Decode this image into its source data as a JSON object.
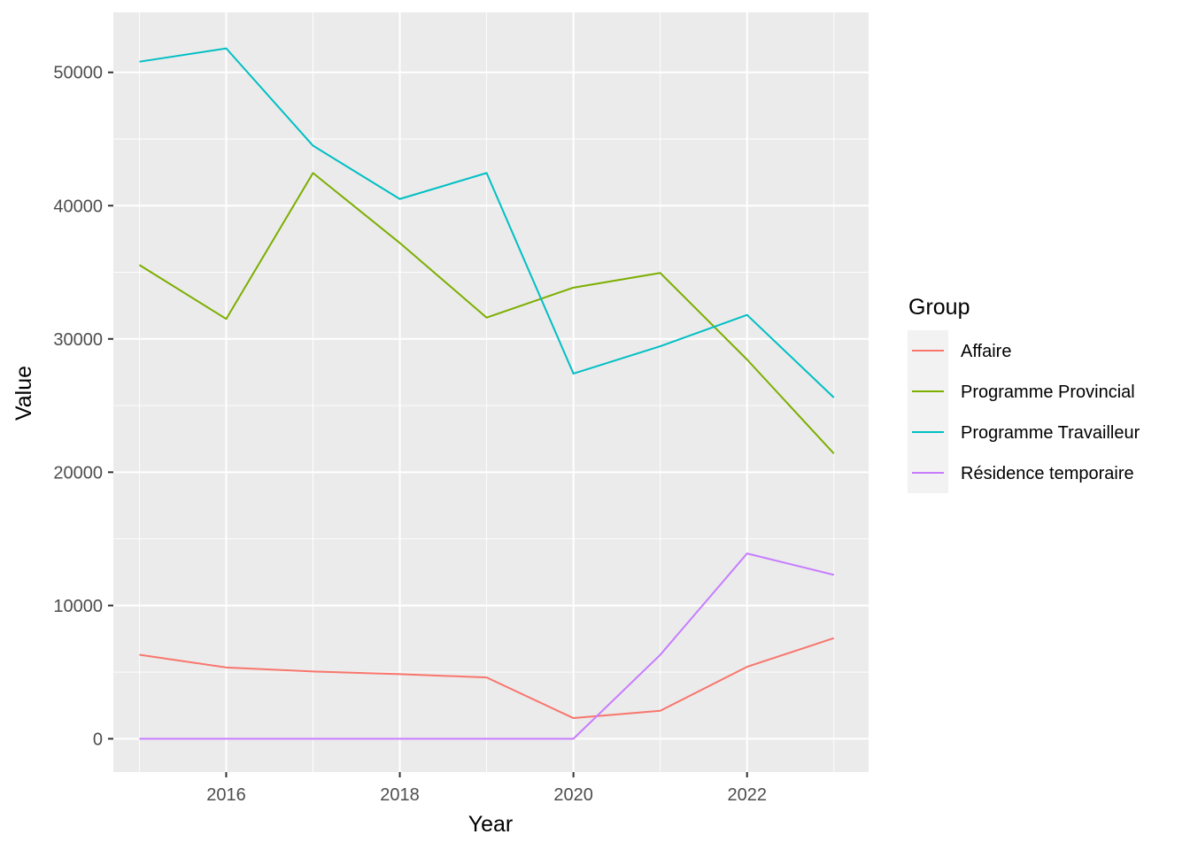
{
  "chart_data": {
    "type": "line",
    "xlabel": "Year",
    "ylabel": "Value",
    "x": [
      2015,
      2016,
      2017,
      2018,
      2019,
      2020,
      2021,
      2022,
      2023
    ],
    "xlim": [
      2014.7,
      2023.4
    ],
    "ylim": [
      -2500,
      54500
    ],
    "x_ticks": [
      2016,
      2018,
      2020,
      2022
    ],
    "y_ticks": [
      0,
      10000,
      20000,
      30000,
      40000,
      50000
    ],
    "x_tick_labels": [
      "2016",
      "2018",
      "2020",
      "2022"
    ],
    "y_tick_labels": [
      "0",
      "10000",
      "20000",
      "30000",
      "40000",
      "50000"
    ],
    "grid": true,
    "background": "#ebebeb",
    "legend": {
      "title": "Group",
      "placement": "right"
    },
    "series": [
      {
        "name": "Affaire",
        "color": "#f8766d",
        "values": [
          6300,
          5350,
          5050,
          4850,
          4600,
          1550,
          2100,
          5400,
          7550
        ]
      },
      {
        "name": "Programme Provincial",
        "color": "#7cae00",
        "values": [
          35550,
          31500,
          42450,
          37200,
          31600,
          33850,
          34950,
          28450,
          21400
        ]
      },
      {
        "name": "Programme Travailleur",
        "color": "#00bfc4",
        "values": [
          50800,
          51800,
          44500,
          40500,
          42450,
          27400,
          29450,
          31800,
          25600
        ]
      },
      {
        "name": "Résidence temporaire",
        "color": "#c77cff",
        "values": [
          0,
          0,
          0,
          0,
          0,
          0,
          6300,
          13900,
          12300
        ]
      }
    ]
  }
}
